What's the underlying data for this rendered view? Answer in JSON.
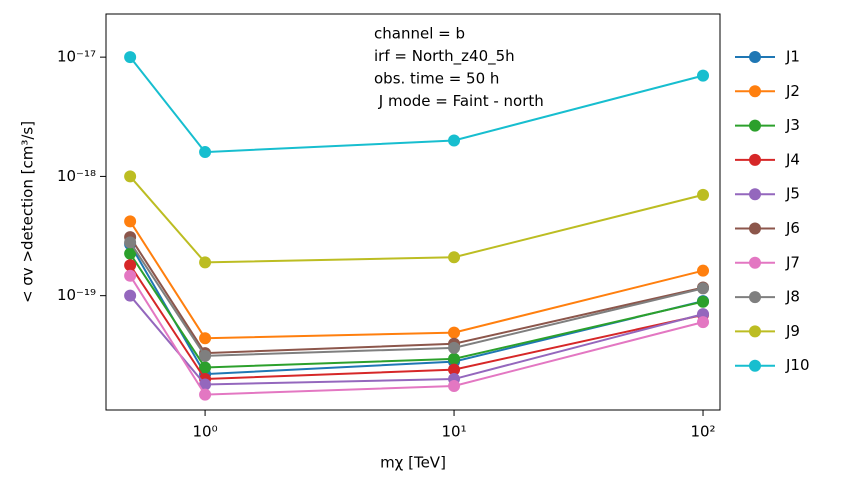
{
  "chart_data": {
    "type": "line",
    "xlabel": "mχ [TeV]",
    "ylabel": "< σv >detection  [cm³/s]",
    "annotations": [
      "channel = b",
      "irf = North_z40_5h",
      "obs. time = 50 h",
      " J mode = Faint - north"
    ],
    "x": [
      0.5,
      1,
      10,
      100
    ],
    "xscale": "log",
    "yscale": "log",
    "xlim": [
      0.4,
      117
    ],
    "ylim": [
      1.1e-20,
      2.3e-17
    ],
    "xticks": [
      {
        "value": 1,
        "label": "10⁰"
      },
      {
        "value": 10,
        "label": "10¹"
      },
      {
        "value": 100,
        "label": "10²"
      }
    ],
    "yticks": [
      {
        "value": 1e-19,
        "label": "10⁻¹⁹"
      },
      {
        "value": 1e-18,
        "label": "10⁻¹⁸"
      },
      {
        "value": 1e-17,
        "label": "10⁻¹⁷"
      }
    ],
    "legend": "outside right",
    "series": [
      {
        "name": "J1",
        "color": "#1f77b4",
        "values": [
          2.7e-19,
          2.2e-20,
          2.8e-20,
          9e-20
        ]
      },
      {
        "name": "J2",
        "color": "#ff7f0e",
        "values": [
          4.2e-19,
          4.4e-20,
          4.9e-20,
          1.62e-19
        ]
      },
      {
        "name": "J3",
        "color": "#2ca02c",
        "values": [
          2.25e-19,
          2.5e-20,
          2.95e-20,
          8.9e-20
        ]
      },
      {
        "name": "J4",
        "color": "#d62728",
        "values": [
          1.8e-19,
          2e-20,
          2.4e-20,
          6.9e-20
        ]
      },
      {
        "name": "J5",
        "color": "#9467bd",
        "values": [
          1e-19,
          1.8e-20,
          2e-20,
          7e-20
        ]
      },
      {
        "name": "J6",
        "color": "#8c564b",
        "values": [
          3.1e-19,
          3.3e-20,
          3.95e-20,
          1.17e-19
        ]
      },
      {
        "name": "J7",
        "color": "#e377c2",
        "values": [
          1.47e-19,
          1.48e-20,
          1.75e-20,
          6e-20
        ]
      },
      {
        "name": "J8",
        "color": "#7f7f7f",
        "values": [
          2.8e-19,
          3.13e-20,
          3.65e-20,
          1.15e-19
        ]
      },
      {
        "name": "J9",
        "color": "#bcbd22",
        "values": [
          1e-18,
          1.9e-19,
          2.1e-19,
          7e-19
        ]
      },
      {
        "name": "J10",
        "color": "#17becf",
        "values": [
          1e-17,
          1.6e-18,
          2e-18,
          7e-18
        ]
      }
    ]
  }
}
